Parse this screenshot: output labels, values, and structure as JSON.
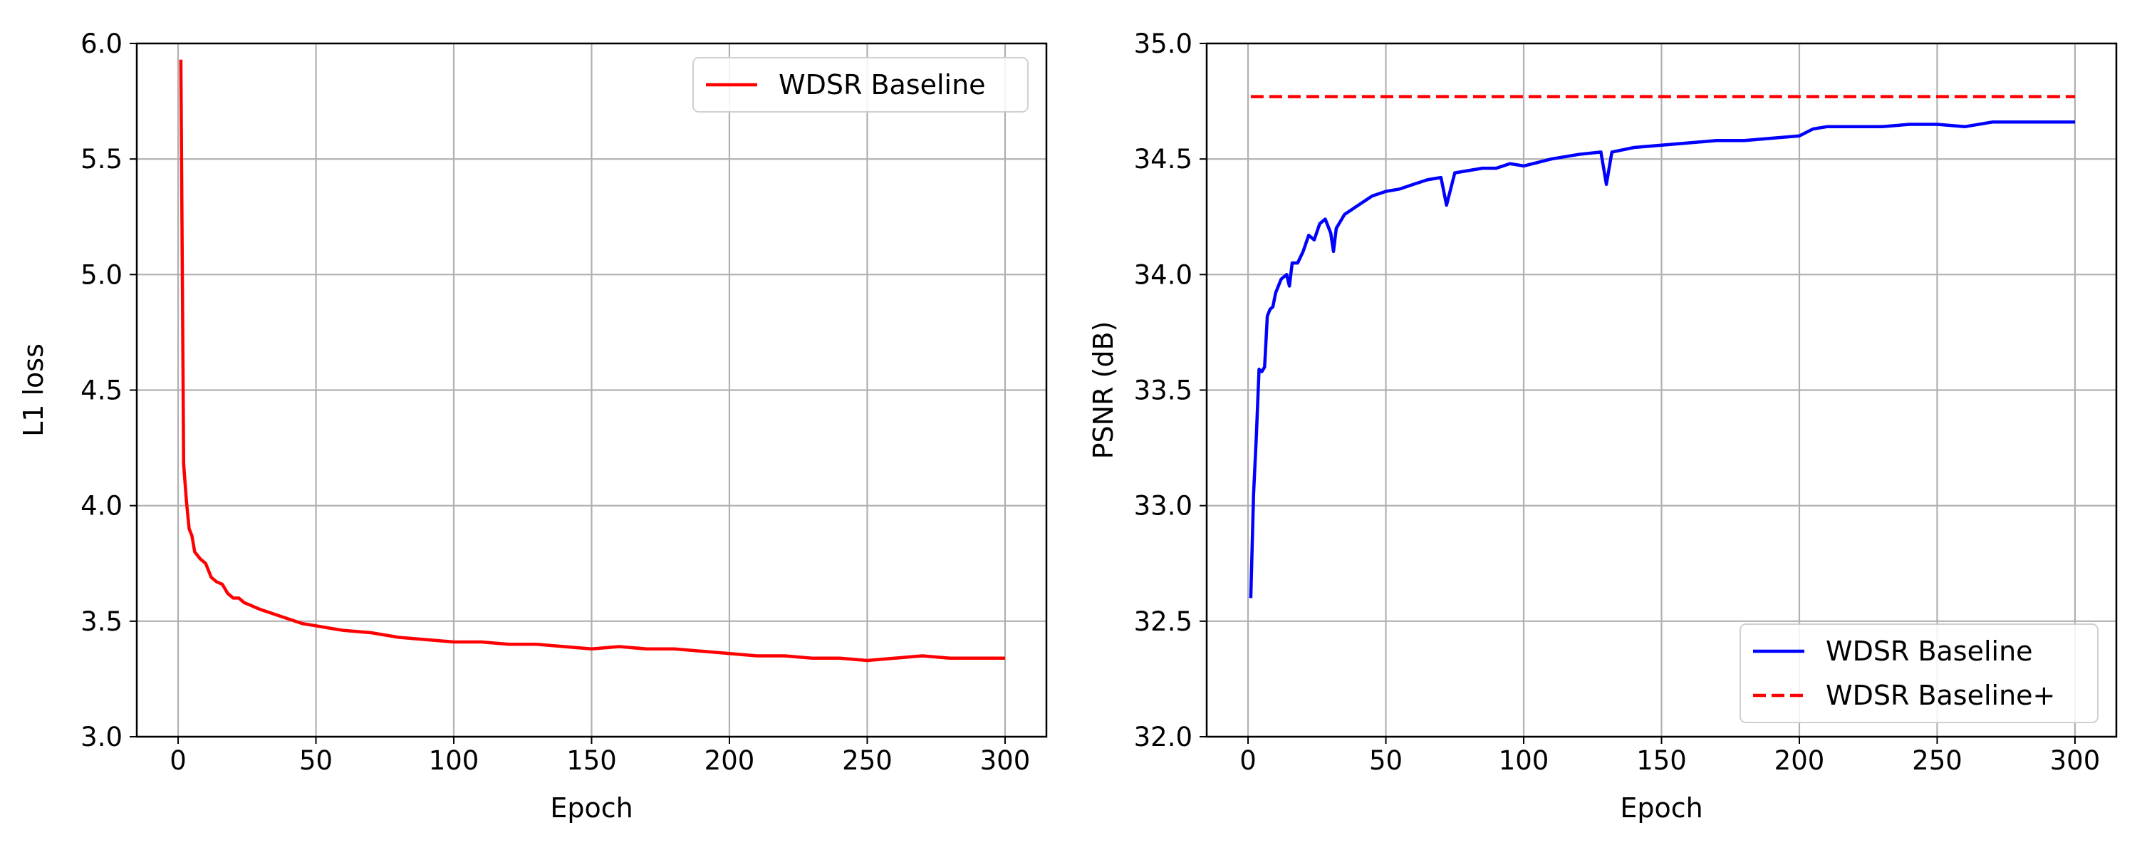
{
  "colors": {
    "red": "#ff0000",
    "blue": "#0000ff",
    "grid": "#b0b0b0",
    "axis": "#000000"
  },
  "chart_data": [
    {
      "type": "line",
      "title": "",
      "xlabel": "Epoch",
      "ylabel": "L1 loss",
      "xlim": [
        -15,
        315
      ],
      "ylim": [
        3.0,
        6.0
      ],
      "xticks": [
        0,
        50,
        100,
        150,
        200,
        250,
        300
      ],
      "yticks": [
        3.0,
        3.5,
        4.0,
        4.5,
        5.0,
        5.5,
        6.0
      ],
      "grid": true,
      "legend_position": "top-right",
      "series": [
        {
          "name": "WDSR Baseline",
          "color": "#ff0000",
          "style": "solid",
          "points": [
            [
              1,
              5.93
            ],
            [
              2,
              4.18
            ],
            [
              3,
              4.02
            ],
            [
              4,
              3.9
            ],
            [
              5,
              3.87
            ],
            [
              6,
              3.8
            ],
            [
              8,
              3.77
            ],
            [
              10,
              3.75
            ],
            [
              12,
              3.69
            ],
            [
              14,
              3.67
            ],
            [
              16,
              3.66
            ],
            [
              18,
              3.62
            ],
            [
              20,
              3.6
            ],
            [
              22,
              3.6
            ],
            [
              24,
              3.58
            ],
            [
              26,
              3.57
            ],
            [
              28,
              3.56
            ],
            [
              30,
              3.55
            ],
            [
              35,
              3.53
            ],
            [
              40,
              3.51
            ],
            [
              45,
              3.49
            ],
            [
              50,
              3.48
            ],
            [
              55,
              3.47
            ],
            [
              60,
              3.46
            ],
            [
              70,
              3.45
            ],
            [
              80,
              3.43
            ],
            [
              90,
              3.42
            ],
            [
              100,
              3.41
            ],
            [
              110,
              3.41
            ],
            [
              120,
              3.4
            ],
            [
              130,
              3.4
            ],
            [
              140,
              3.39
            ],
            [
              150,
              3.38
            ],
            [
              160,
              3.39
            ],
            [
              170,
              3.38
            ],
            [
              180,
              3.38
            ],
            [
              190,
              3.37
            ],
            [
              200,
              3.36
            ],
            [
              210,
              3.35
            ],
            [
              220,
              3.35
            ],
            [
              230,
              3.34
            ],
            [
              240,
              3.34
            ],
            [
              250,
              3.33
            ],
            [
              260,
              3.34
            ],
            [
              270,
              3.35
            ],
            [
              280,
              3.34
            ],
            [
              290,
              3.34
            ],
            [
              300,
              3.34
            ]
          ]
        }
      ]
    },
    {
      "type": "line",
      "title": "",
      "xlabel": "Epoch",
      "ylabel": "PSNR (dB)",
      "xlim": [
        -15,
        315
      ],
      "ylim": [
        32.0,
        35.0
      ],
      "xticks": [
        0,
        50,
        100,
        150,
        200,
        250,
        300
      ],
      "yticks": [
        32.0,
        32.5,
        33.0,
        33.5,
        34.0,
        34.5,
        35.0
      ],
      "grid": true,
      "legend_position": "bottom-right",
      "series": [
        {
          "name": "WDSR Baseline",
          "color": "#0000ff",
          "style": "solid",
          "points": [
            [
              1,
              32.6
            ],
            [
              2,
              33.05
            ],
            [
              3,
              33.3
            ],
            [
              4,
              33.59
            ],
            [
              5,
              33.58
            ],
            [
              6,
              33.6
            ],
            [
              7,
              33.82
            ],
            [
              8,
              33.85
            ],
            [
              9,
              33.86
            ],
            [
              10,
              33.92
            ],
            [
              12,
              33.98
            ],
            [
              14,
              34.0
            ],
            [
              15,
              33.95
            ],
            [
              16,
              34.05
            ],
            [
              18,
              34.05
            ],
            [
              20,
              34.1
            ],
            [
              22,
              34.17
            ],
            [
              24,
              34.15
            ],
            [
              26,
              34.22
            ],
            [
              28,
              34.24
            ],
            [
              30,
              34.18
            ],
            [
              31,
              34.1
            ],
            [
              32,
              34.2
            ],
            [
              35,
              34.26
            ],
            [
              40,
              34.3
            ],
            [
              45,
              34.34
            ],
            [
              50,
              34.36
            ],
            [
              55,
              34.37
            ],
            [
              60,
              34.39
            ],
            [
              65,
              34.41
            ],
            [
              70,
              34.42
            ],
            [
              72,
              34.3
            ],
            [
              75,
              34.44
            ],
            [
              80,
              34.45
            ],
            [
              85,
              34.46
            ],
            [
              90,
              34.46
            ],
            [
              95,
              34.48
            ],
            [
              100,
              34.47
            ],
            [
              110,
              34.5
            ],
            [
              120,
              34.52
            ],
            [
              128,
              34.53
            ],
            [
              130,
              34.39
            ],
            [
              132,
              34.53
            ],
            [
              140,
              34.55
            ],
            [
              150,
              34.56
            ],
            [
              160,
              34.57
            ],
            [
              170,
              34.58
            ],
            [
              180,
              34.58
            ],
            [
              190,
              34.59
            ],
            [
              200,
              34.6
            ],
            [
              205,
              34.63
            ],
            [
              210,
              34.64
            ],
            [
              220,
              34.64
            ],
            [
              230,
              34.64
            ],
            [
              240,
              34.65
            ],
            [
              250,
              34.65
            ],
            [
              260,
              34.64
            ],
            [
              270,
              34.66
            ],
            [
              280,
              34.66
            ],
            [
              290,
              34.66
            ],
            [
              300,
              34.66
            ]
          ]
        },
        {
          "name": "WDSR Baseline+",
          "color": "#ff0000",
          "style": "dashed",
          "points": [
            [
              1,
              34.77
            ],
            [
              300,
              34.77
            ]
          ]
        }
      ]
    }
  ]
}
